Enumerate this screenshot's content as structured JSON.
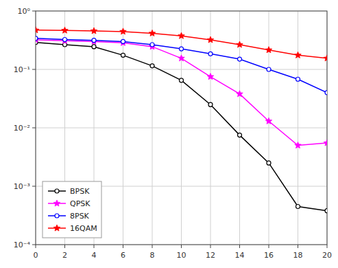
{
  "chart_data": {
    "type": "line",
    "x": [
      0,
      2,
      4,
      6,
      8,
      10,
      12,
      14,
      16,
      18,
      20
    ],
    "series": [
      {
        "name": "BPSK",
        "color": "#000000",
        "marker": "circle",
        "values": [
          0.29,
          0.265,
          0.245,
          0.175,
          0.115,
          0.065,
          0.025,
          0.0075,
          0.0025,
          0.00045,
          0.00038
        ]
      },
      {
        "name": "QPSK",
        "color": "#ff00ff",
        "marker": "star",
        "values": [
          0.32,
          0.31,
          0.3,
          0.285,
          0.245,
          0.155,
          0.075,
          0.038,
          0.013,
          0.005,
          0.0055
        ]
      },
      {
        "name": "8PSK",
        "color": "#0000ff",
        "marker": "circle",
        "values": [
          0.34,
          0.325,
          0.315,
          0.3,
          0.265,
          0.225,
          0.185,
          0.15,
          0.1,
          0.068,
          0.04
        ]
      },
      {
        "name": "16QAM",
        "color": "#ff0000",
        "marker": "star",
        "values": [
          0.47,
          0.465,
          0.455,
          0.445,
          0.415,
          0.375,
          0.32,
          0.265,
          0.215,
          0.175,
          0.155
        ]
      }
    ],
    "xlim": [
      0,
      20
    ],
    "xticks": [
      0,
      2,
      4,
      6,
      8,
      10,
      12,
      14,
      16,
      18,
      20
    ],
    "ylim": [
      0.0001,
      1.0
    ],
    "yticks": [
      {
        "value": 0.0001,
        "label": "10⁻⁴"
      },
      {
        "value": 0.001,
        "label": "10⁻³"
      },
      {
        "value": 0.01,
        "label": "10⁻²"
      },
      {
        "value": 0.1,
        "label": "10⁻¹"
      },
      {
        "value": 1,
        "label": "10⁰"
      }
    ],
    "log": "y",
    "grid": true,
    "legend": "lower left"
  }
}
